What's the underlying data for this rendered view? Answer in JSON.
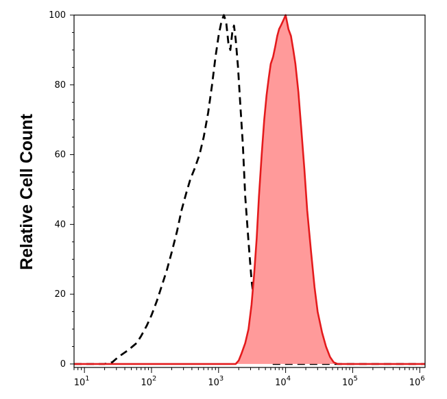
{
  "chart_data": {
    "type": "area",
    "xlabel": "",
    "ylabel": "Relative Cell Count",
    "x_scale": "log",
    "xlim": [
      7,
      1200000
    ],
    "ylim": [
      -1,
      100
    ],
    "y_ticks": [
      0,
      20,
      40,
      60,
      80,
      100
    ],
    "x_ticks": [
      {
        "value": 10,
        "base": "10",
        "exp": "1"
      },
      {
        "value": 100,
        "base": "10",
        "exp": "2"
      },
      {
        "value": 1000,
        "base": "10",
        "exp": "3"
      },
      {
        "value": 10000,
        "base": "10",
        "exp": "4"
      },
      {
        "value": 100000,
        "base": "10",
        "exp": "5"
      },
      {
        "value": 1000000,
        "base": "10",
        "exp": "6"
      }
    ],
    "grid": false,
    "series": [
      {
        "style": "dashed-line",
        "color": "#000000",
        "points": [
          [
            20,
            0
          ],
          [
            26,
            0.5
          ],
          [
            32,
            2
          ],
          [
            38,
            3
          ],
          [
            45,
            4
          ],
          [
            52,
            5
          ],
          [
            60,
            6
          ],
          [
            70,
            8
          ],
          [
            85,
            11
          ],
          [
            100,
            14
          ],
          [
            120,
            18
          ],
          [
            140,
            22
          ],
          [
            170,
            27
          ],
          [
            200,
            32
          ],
          [
            240,
            38
          ],
          [
            280,
            44
          ],
          [
            330,
            49
          ],
          [
            380,
            53
          ],
          [
            440,
            56
          ],
          [
            520,
            60
          ],
          [
            600,
            65
          ],
          [
            700,
            72
          ],
          [
            800,
            80
          ],
          [
            900,
            88
          ],
          [
            1000,
            94
          ],
          [
            1100,
            98
          ],
          [
            1200,
            100
          ],
          [
            1300,
            98
          ],
          [
            1400,
            92
          ],
          [
            1500,
            90
          ],
          [
            1600,
            95
          ],
          [
            1700,
            97
          ],
          [
            1800,
            93
          ],
          [
            1950,
            85
          ],
          [
            2100,
            75
          ],
          [
            2300,
            63
          ],
          [
            2500,
            48
          ],
          [
            2800,
            35
          ],
          [
            3100,
            24
          ],
          [
            3500,
            16
          ],
          [
            4000,
            10
          ],
          [
            4500,
            6
          ],
          [
            5000,
            3
          ],
          [
            5600,
            1
          ],
          [
            6200,
            0
          ]
        ]
      },
      {
        "style": "filled",
        "color": "#e41a1c",
        "fill": "#ff9a9a",
        "points": [
          [
            1800,
            0
          ],
          [
            2000,
            1
          ],
          [
            2200,
            3
          ],
          [
            2500,
            6
          ],
          [
            2800,
            10
          ],
          [
            3100,
            17
          ],
          [
            3400,
            26
          ],
          [
            3700,
            36
          ],
          [
            4000,
            48
          ],
          [
            4400,
            60
          ],
          [
            4800,
            70
          ],
          [
            5200,
            77
          ],
          [
            5600,
            82
          ],
          [
            6000,
            86
          ],
          [
            6500,
            88
          ],
          [
            7000,
            91
          ],
          [
            7500,
            94
          ],
          [
            8000,
            96
          ],
          [
            8500,
            97
          ],
          [
            9000,
            98
          ],
          [
            9500,
            99
          ],
          [
            10000,
            100
          ],
          [
            10500,
            98
          ],
          [
            11000,
            96
          ],
          [
            12000,
            94
          ],
          [
            13000,
            90
          ],
          [
            14000,
            86
          ],
          [
            15500,
            78
          ],
          [
            17000,
            68
          ],
          [
            19000,
            56
          ],
          [
            21000,
            44
          ],
          [
            24000,
            32
          ],
          [
            27000,
            22
          ],
          [
            30000,
            15
          ],
          [
            35000,
            9
          ],
          [
            40000,
            5
          ],
          [
            46000,
            2
          ],
          [
            52000,
            0.5
          ],
          [
            60000,
            0
          ]
        ]
      }
    ]
  }
}
